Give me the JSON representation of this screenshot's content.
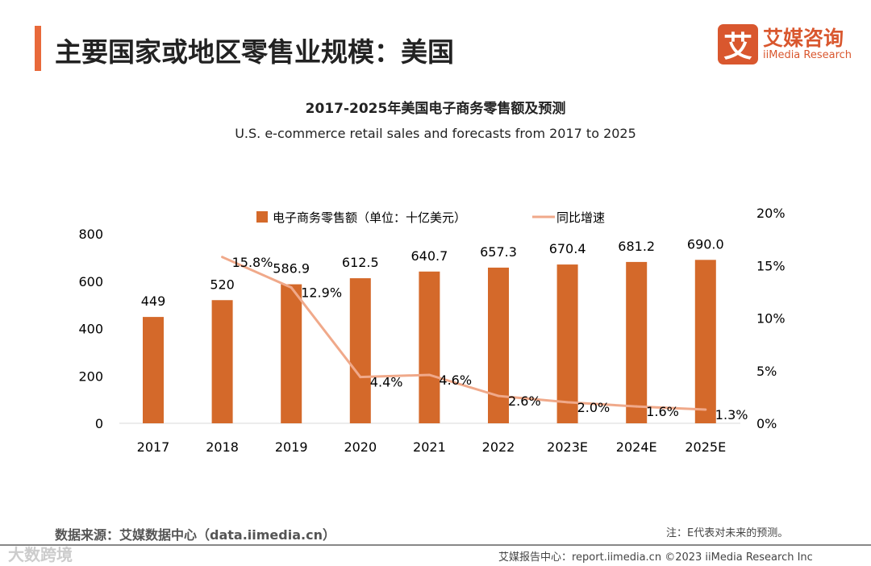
{
  "page_title": "主要国家或地区零售业规模：美国",
  "logo": {
    "mark": "艾",
    "cn": "艾媒咨询",
    "en": "iiMedia Research"
  },
  "chart_data": {
    "type": "bar+line",
    "title": "2017-2025年美国电子商务零售额及预测",
    "subtitle": "U.S. e-commerce retail sales and forecasts from 2017 to 2025",
    "categories": [
      "2017",
      "2018",
      "2019",
      "2020",
      "2021",
      "2022",
      "2023E",
      "2024E",
      "2025E"
    ],
    "series": [
      {
        "name": "电子商务零售额（单位：十亿美元）",
        "type": "bar",
        "axis": "left",
        "color": "#d4692a",
        "values": [
          449,
          520,
          586.9,
          612.5,
          640.7,
          657.3,
          670.4,
          681.2,
          690.0
        ],
        "labels": [
          "449",
          "520",
          "586.9",
          "612.5",
          "640.7",
          "657.3",
          "670.4",
          "681.2",
          "690.0"
        ]
      },
      {
        "name": "同比增速",
        "type": "line",
        "axis": "right",
        "color": "#f0a98a",
        "values": [
          null,
          15.8,
          12.9,
          4.4,
          4.6,
          2.6,
          2.0,
          1.6,
          1.3
        ],
        "labels": [
          "",
          "15.8%",
          "12.9%",
          "4.4%",
          "4.6%",
          "2.6%",
          "2.0%",
          "1.6%",
          "1.3%"
        ]
      }
    ],
    "yleft": {
      "ticks": [
        "0",
        "200",
        "400",
        "600",
        "800"
      ],
      "ylim": [
        0,
        800
      ]
    },
    "yright": {
      "ticks": [
        "0%",
        "5%",
        "10%",
        "15%",
        "20%"
      ],
      "ylim": [
        0,
        20
      ]
    },
    "legend": "top-center"
  },
  "source": "数据来源：艾媒数据中心（data.iimedia.cn）",
  "note": "注：E代表对未来的预测。",
  "footer": "艾媒报告中心：report.iimedia.cn  ©2023  iiMedia Research Inc",
  "watermark": "大数跨境"
}
